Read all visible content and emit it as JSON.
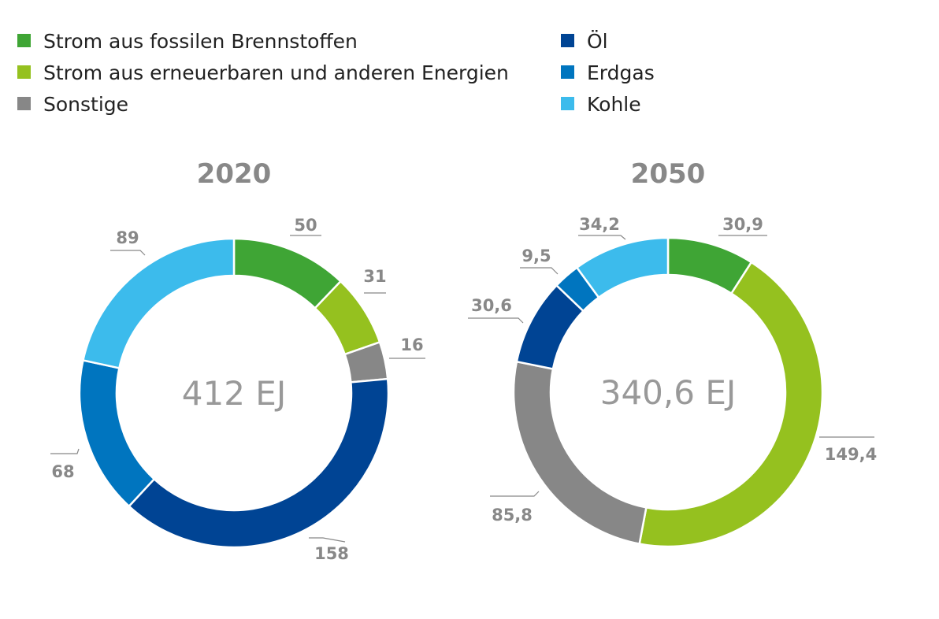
{
  "chart_data": {
    "type": "pie",
    "style": "donut",
    "legend": [
      {
        "key": "fossil",
        "label": "Strom aus fossilen Brennstoffen",
        "color": "#3fa535"
      },
      {
        "key": "renew",
        "label": "Strom aus erneuerbaren und anderen Energien",
        "color": "#95c11f"
      },
      {
        "key": "other",
        "label": "Sonstige",
        "color": "#878787"
      },
      {
        "key": "oil",
        "label": "Öl",
        "color": "#004494"
      },
      {
        "key": "gas",
        "label": "Erdgas",
        "color": "#0075bf"
      },
      {
        "key": "coal",
        "label": "Kohle",
        "color": "#3cbbec"
      }
    ],
    "charts": [
      {
        "title": "2020",
        "total_label": "412 EJ",
        "segments": [
          {
            "key": "fossil",
            "value": 50,
            "label": "50"
          },
          {
            "key": "renew",
            "value": 31,
            "label": "31"
          },
          {
            "key": "other",
            "value": 16,
            "label": "16"
          },
          {
            "key": "oil",
            "value": 158,
            "label": "158"
          },
          {
            "key": "gas",
            "value": 68,
            "label": "68"
          },
          {
            "key": "coal",
            "value": 89,
            "label": "89"
          }
        ]
      },
      {
        "title": "2050",
        "total_label": "340,6 EJ",
        "segments": [
          {
            "key": "fossil",
            "value": 30.9,
            "label": "30,9"
          },
          {
            "key": "renew",
            "value": 149.4,
            "label": "149,4"
          },
          {
            "key": "other",
            "value": 85.8,
            "label": "85,8"
          },
          {
            "key": "oil",
            "value": 30.6,
            "label": "30,6"
          },
          {
            "key": "gas",
            "value": 9.5,
            "label": "9,5"
          },
          {
            "key": "coal",
            "value": 34.2,
            "label": "34,2"
          }
        ]
      }
    ]
  }
}
